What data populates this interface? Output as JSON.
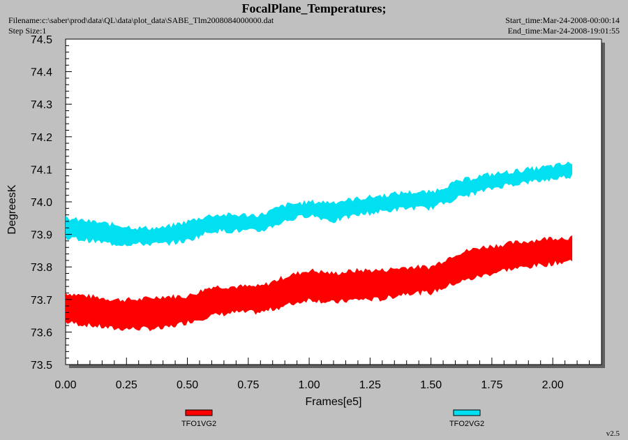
{
  "header": {
    "title": "FocalPlane_Temperatures;",
    "filename": "Filename:c:\\saber\\prod\\data\\QL\\data\\plot_data\\SABE_Tlm2008084000000.dat",
    "step_size": "Step Size:1",
    "start_time": "Start_time:Mar-24-2008-00:00:14",
    "end_time": "End_time:Mar-24-2008-19:01:55"
  },
  "version": "v2.5",
  "chart_data": {
    "type": "line",
    "title": "FocalPlane_Temperatures;",
    "xlabel": "Frames[e5]",
    "ylabel": "DegreesK",
    "xlim": [
      0,
      2.2
    ],
    "ylim": [
      73.5,
      74.5
    ],
    "x_ticks": [
      0.0,
      0.25,
      0.5,
      0.75,
      1.0,
      1.25,
      1.5,
      1.75,
      2.0
    ],
    "x_tick_labels": [
      "0.00",
      "0.25",
      "0.50",
      "0.75",
      "1.00",
      "1.25",
      "1.50",
      "1.75",
      "2.00"
    ],
    "y_ticks": [
      73.5,
      73.6,
      73.7,
      73.8,
      73.9,
      74.0,
      74.1,
      74.2,
      74.3,
      74.4,
      74.5
    ],
    "y_tick_labels": [
      "73.5",
      "73.6",
      "73.7",
      "73.8",
      "73.9",
      "74.0",
      "74.1",
      "74.2",
      "74.3",
      "74.4",
      "74.5"
    ],
    "grid": false,
    "legend_position": "bottom",
    "series": [
      {
        "name": "TFO1VG2",
        "color": "#ff0000",
        "x": [
          0.0,
          0.1,
          0.2,
          0.3,
          0.4,
          0.5,
          0.6,
          0.7,
          0.8,
          0.9,
          1.0,
          1.1,
          1.2,
          1.3,
          1.4,
          1.5,
          1.6,
          1.7,
          1.8,
          1.9,
          2.0,
          2.08
        ],
        "upper": [
          73.72,
          73.71,
          73.7,
          73.7,
          73.71,
          73.71,
          73.74,
          73.74,
          73.74,
          73.77,
          73.79,
          73.78,
          73.79,
          73.79,
          73.8,
          73.8,
          73.84,
          73.86,
          73.87,
          73.88,
          73.89,
          73.89
        ],
        "lower": [
          73.63,
          73.62,
          73.61,
          73.61,
          73.61,
          73.63,
          73.65,
          73.66,
          73.66,
          73.68,
          73.7,
          73.69,
          73.7,
          73.7,
          73.72,
          73.72,
          73.75,
          73.77,
          73.79,
          73.8,
          73.81,
          73.82
        ]
      },
      {
        "name": "TFO2VG2",
        "color": "#00e0f0",
        "x": [
          0.0,
          0.1,
          0.2,
          0.3,
          0.4,
          0.5,
          0.6,
          0.7,
          0.8,
          0.9,
          1.0,
          1.1,
          1.2,
          1.3,
          1.4,
          1.5,
          1.6,
          1.7,
          1.8,
          1.9,
          2.0,
          2.08
        ],
        "upper": [
          73.95,
          73.94,
          73.93,
          73.92,
          73.92,
          73.94,
          73.96,
          73.96,
          73.96,
          73.99,
          74.0,
          74.0,
          74.01,
          74.02,
          74.03,
          74.03,
          74.06,
          74.08,
          74.09,
          74.1,
          74.11,
          74.12
        ],
        "lower": [
          73.89,
          73.88,
          73.87,
          73.87,
          73.87,
          73.88,
          73.91,
          73.91,
          73.91,
          73.94,
          73.96,
          73.94,
          73.96,
          73.97,
          73.98,
          73.98,
          74.01,
          74.03,
          74.05,
          74.06,
          74.07,
          74.08
        ]
      }
    ]
  }
}
